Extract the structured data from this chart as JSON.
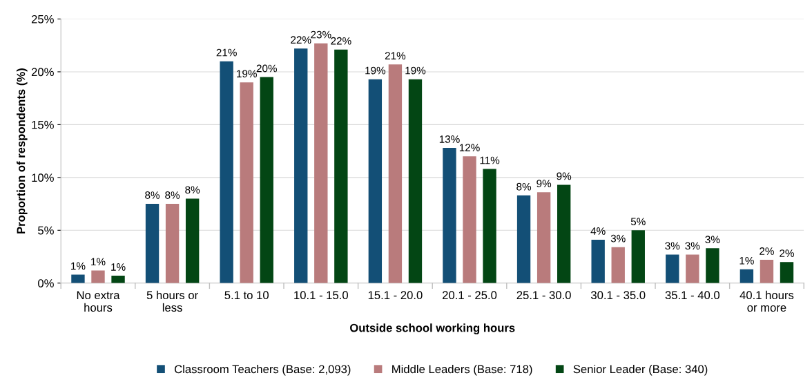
{
  "chart_data": {
    "type": "bar",
    "xlabel": "Outside school working hours",
    "ylabel": "Proportion of respondents (%)",
    "categories": [
      "No extra\nhours",
      "5 hours or\nless",
      "5.1 to 10",
      "10.1 - 15.0",
      "15.1 - 20.0",
      "20.1 - 25.0",
      "25.1 - 30.0",
      "30.1 - 35.0",
      "35.1 - 40.0",
      "40.1 hours\nor more"
    ],
    "series": [
      {
        "name": "Classroom Teachers (Base: 2,093)",
        "color": "#134f76",
        "values": [
          0.8,
          7.5,
          21.0,
          22.2,
          19.3,
          12.8,
          8.3,
          4.1,
          2.7,
          1.3
        ],
        "value_labels": [
          "1%",
          "8%",
          "21%",
          "22%",
          "19%",
          "13%",
          "8%",
          "4%",
          "3%",
          "1%"
        ]
      },
      {
        "name": "Middle Leaders (Base: 718)",
        "color": "#b97b7c",
        "values": [
          1.2,
          7.5,
          19.0,
          22.7,
          20.7,
          12.0,
          8.6,
          3.4,
          2.7,
          2.2
        ],
        "value_labels": [
          "1%",
          "8%",
          "19%",
          "23%",
          "21%",
          "12%",
          "9%",
          "3%",
          "3%",
          "2%"
        ]
      },
      {
        "name": "Senior Leader (Base: 340)",
        "color": "#034614",
        "values": [
          0.7,
          8.0,
          19.5,
          22.1,
          19.3,
          10.8,
          9.3,
          5.0,
          3.3,
          2.0
        ],
        "value_labels": [
          "1%",
          "8%",
          "20%",
          "22%",
          "19%",
          "11%",
          "9%",
          "5%",
          "3%",
          "2%"
        ]
      }
    ],
    "ylim": [
      0,
      25
    ],
    "yticks": [
      {
        "value": 0,
        "label": "0%"
      },
      {
        "value": 5,
        "label": "5%"
      },
      {
        "value": 10,
        "label": "10%"
      },
      {
        "value": 15,
        "label": "15%"
      },
      {
        "value": 20,
        "label": "20%"
      },
      {
        "value": 25,
        "label": "25%"
      }
    ],
    "grid": "y",
    "legend": "bottom"
  }
}
